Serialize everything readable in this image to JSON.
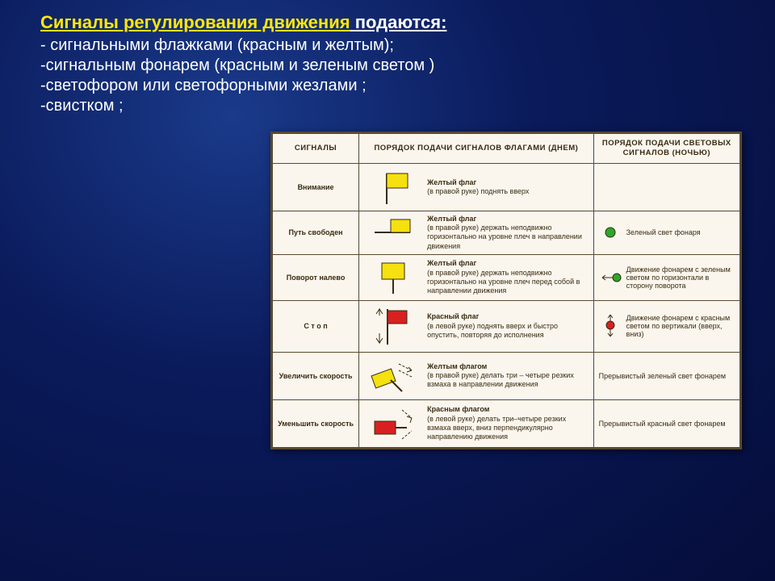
{
  "header": {
    "title_highlight": "Сигналы регулирования движения",
    "title_rest": " подаются:",
    "bullets": [
      "- сигнальными флажками (красным и желтым);",
      "-сигнальным фонарем (красным и зеленым светом )",
      "-светофором или светофорными жезлами ;",
      "-свистком ;"
    ]
  },
  "table": {
    "headers": [
      "СИГНАЛЫ",
      "ПОРЯДОК ПОДАЧИ СИГНАЛОВ ФЛАГАМИ (ДНЕМ)",
      "ПОРЯДОК ПОДАЧИ СВЕТОВЫХ СИГНАЛОВ (НОЧЬЮ)"
    ],
    "rows": [
      {
        "signal": "Внимание",
        "flag_icon": "flag_up_yellow",
        "flag_desc_bold": "Желтый флаг",
        "flag_desc": "(в правой руке) поднять вверх",
        "night_icon": "",
        "night_desc": ""
      },
      {
        "signal": "Путь свободен",
        "flag_icon": "flag_side_yellow",
        "flag_desc_bold": "Желтый флаг",
        "flag_desc": "(в правой руке) держать неподвижно горизонтально на уровне плеч в направлении движения",
        "night_icon": "green_dot",
        "night_desc": "Зеленый свет фонаря"
      },
      {
        "signal": "Поворот налево",
        "flag_icon": "flag_front_yellow",
        "flag_desc_bold": "Желтый флаг",
        "flag_desc": "(в правой руке) держать неподвижно горизонтально на уровне плеч перед собой в направлении движения",
        "night_icon": "green_arrow_h",
        "night_desc": "Движение фонарем с зеленым светом по горизонтали в сторону поворота"
      },
      {
        "signal": "С т о п",
        "flag_icon": "flag_red_updown",
        "flag_desc_bold": "Красный флаг",
        "flag_desc": "(в левой руке) поднять вверх и быстро опустить, повторяя до исполнения",
        "night_icon": "red_arrow_v",
        "night_desc": "Движение фонарем с красным светом по вертикали (вверх, вниз)"
      },
      {
        "signal": "Увеличить скорость",
        "flag_icon": "flag_yellow_wave",
        "flag_desc_bold": "Желтым флагом",
        "flag_desc": "(в правой руке) делать три – четыре резких взмаха в направлении движения",
        "night_icon": "",
        "night_desc": "Прерывистый зеленый свет фонарем"
      },
      {
        "signal": "Уменьшить скорость",
        "flag_icon": "flag_red_wave",
        "flag_desc_bold": "Красным флагом",
        "flag_desc": "(в левой руке) делать три–четыре резких взмаха вверх, вниз перпендикулярно направлению движения",
        "night_icon": "",
        "night_desc": "Прерывистый красный свет фонарем"
      }
    ]
  },
  "colors": {
    "yellow": "#f5e010",
    "red": "#d82020",
    "green": "#2aa82a",
    "flag_border": "#3a2a10"
  }
}
